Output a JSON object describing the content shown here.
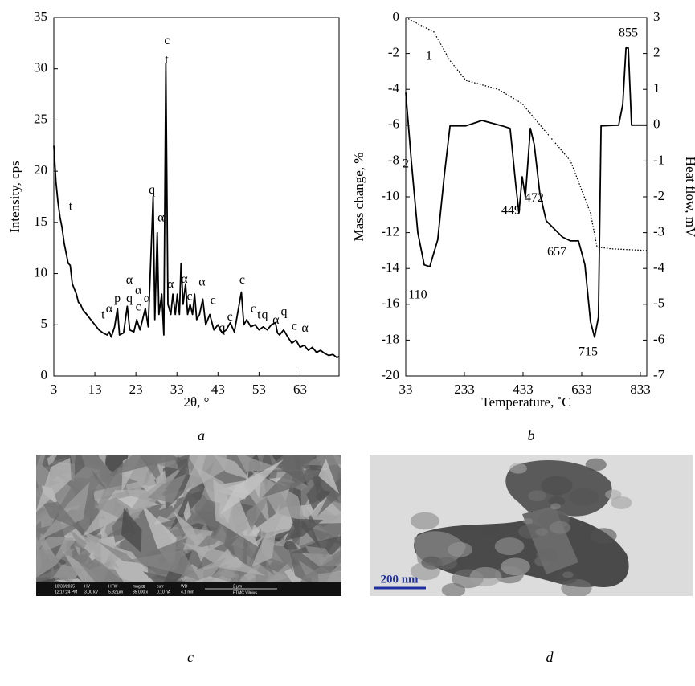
{
  "chart_data": [
    {
      "type": "line",
      "caption": "a",
      "x_label": "2θ, °",
      "y_label": "Intensity, cps",
      "xlim": [
        3,
        72.5
      ],
      "xticks": [
        3,
        13,
        23,
        33,
        43,
        53,
        63
      ],
      "ylim": [
        0,
        35
      ],
      "yticks": [
        0,
        5,
        10,
        15,
        20,
        25,
        30,
        35
      ],
      "series": [
        {
          "color": "#000000",
          "style": "solid",
          "x": [
            3,
            3.5,
            4,
            4.5,
            5,
            5.5,
            6,
            6.5,
            7,
            7.5,
            8,
            8.5,
            9,
            9.5,
            10,
            11,
            12,
            13,
            14,
            15,
            16,
            16.5,
            17,
            17.8,
            18.5,
            19,
            20,
            20.9,
            21.5,
            22.5,
            23.2,
            24,
            25.3,
            26,
            27.2,
            27.6,
            28.2,
            28.6,
            29.3,
            29.8,
            30.3,
            30.8,
            31.5,
            32,
            32.6,
            33.1,
            33.6,
            34,
            34.5,
            35.1,
            35.6,
            36.2,
            36.8,
            37.3,
            37.8,
            38.5,
            39.3,
            40,
            41,
            42,
            43,
            44,
            45,
            46,
            47,
            48.7,
            49.3,
            50,
            51,
            52,
            53,
            54,
            55,
            56,
            57,
            57.5,
            58,
            59,
            60,
            61,
            62,
            63,
            64,
            65,
            66,
            67,
            68,
            69,
            70,
            71,
            72,
            72.5
          ],
          "values": [
            22.5,
            19,
            17,
            15.5,
            14.5,
            13,
            12,
            11,
            10.8,
            9,
            8.5,
            8,
            7.2,
            7,
            6.5,
            6,
            5.5,
            5,
            4.5,
            4.2,
            4,
            4.3,
            3.8,
            4.8,
            6.6,
            4,
            4.2,
            6.8,
            4.5,
            4.3,
            5.5,
            4.5,
            6.6,
            4.8,
            17.5,
            5.5,
            14,
            6,
            8,
            4,
            30.5,
            7,
            6,
            8,
            6,
            8,
            6,
            11,
            7,
            9,
            6,
            7,
            6,
            8,
            5.5,
            6,
            7.5,
            5,
            6,
            4.5,
            5,
            4.2,
            4.5,
            5.2,
            4.3,
            8.2,
            5,
            5.5,
            4.8,
            5,
            4.5,
            4.8,
            4.5,
            5,
            5.2,
            4.2,
            4,
            4.5,
            3.8,
            3.2,
            3.5,
            2.8,
            3,
            2.5,
            2.8,
            2.3,
            2.5,
            2.2,
            2,
            2.1,
            1.8,
            1.9
          ]
        }
      ],
      "annotations": [
        {
          "text": "c",
          "x": 30.6,
          "y": 32.7
        },
        {
          "text": "t",
          "x": 30.5,
          "y": 30.8
        },
        {
          "text": "q",
          "x": 26.9,
          "y": 18.1
        },
        {
          "text": "α",
          "x": 29.1,
          "y": 15.4
        },
        {
          "text": "t",
          "x": 7.1,
          "y": 16.5
        },
        {
          "text": "t",
          "x": 15,
          "y": 5.9
        },
        {
          "text": "α",
          "x": 16.5,
          "y": 6.5
        },
        {
          "text": "p",
          "x": 18.5,
          "y": 7.5
        },
        {
          "text": "q",
          "x": 21.4,
          "y": 7.5
        },
        {
          "text": "α",
          "x": 21.4,
          "y": 9.3
        },
        {
          "text": "α",
          "x": 23.6,
          "y": 8.3
        },
        {
          "text": "c",
          "x": 23.6,
          "y": 6.7
        },
        {
          "text": "α",
          "x": 25.7,
          "y": 7.5
        },
        {
          "text": "α",
          "x": 31.4,
          "y": 8.9
        },
        {
          "text": "α",
          "x": 34.8,
          "y": 9.4
        },
        {
          "text": "c",
          "x": 36.1,
          "y": 7.7
        },
        {
          "text": "α",
          "x": 39.1,
          "y": 9.1
        },
        {
          "text": "c",
          "x": 41.8,
          "y": 7.3
        },
        {
          "text": "q",
          "x": 44,
          "y": 4.6
        },
        {
          "text": "c",
          "x": 45.9,
          "y": 5.7
        },
        {
          "text": "c",
          "x": 48.9,
          "y": 9.3
        },
        {
          "text": "c",
          "x": 51.6,
          "y": 6.5
        },
        {
          "text": "t",
          "x": 53,
          "y": 5.9
        },
        {
          "text": "q",
          "x": 54.4,
          "y": 5.9
        },
        {
          "text": "α",
          "x": 57.1,
          "y": 5.4
        },
        {
          "text": "q",
          "x": 59.1,
          "y": 6.2
        },
        {
          "text": "c",
          "x": 61.6,
          "y": 4.8
        },
        {
          "text": "α",
          "x": 64.2,
          "y": 4.6
        }
      ]
    },
    {
      "type": "line",
      "caption": "b",
      "x_label": "Temperature, ˚C",
      "y_label": "Mass change, %",
      "y2_label": "Heat flow, mV",
      "xlim": [
        33,
        855
      ],
      "xticks": [
        33,
        233,
        433,
        633,
        833
      ],
      "ylim": [
        -20,
        0
      ],
      "yticks": [
        0,
        -2,
        -4,
        -6,
        -8,
        -10,
        -12,
        -14,
        -16,
        -18,
        -20
      ],
      "y2lim": [
        -7,
        3
      ],
      "y2ticks": [
        3,
        2,
        1,
        0,
        -1,
        -2,
        -3,
        -4,
        -5,
        -6,
        -7
      ],
      "series": [
        {
          "color": "#000000",
          "style": "dotted",
          "x": [
            33,
            129,
            184,
            238,
            348,
            430,
            512,
            595,
            663,
            685,
            732,
            855
          ],
          "values": [
            0,
            -0.8,
            -2.4,
            -3.5,
            -4,
            -4.8,
            -6.4,
            -8,
            -10.9,
            -12.8,
            -12.9,
            -13
          ]
        },
        {
          "color": "#000000",
          "style": "solid",
          "axis": "y2",
          "x": [
            33,
            52,
            74,
            96,
            115,
            142,
            164,
            184,
            238,
            293,
            362,
            389,
            408,
            419,
            430,
            441,
            458,
            471,
            490,
            512,
            540,
            567,
            595,
            622,
            644,
            663,
            677,
            690,
            699,
            759,
            773,
            784,
            792,
            803,
            855
          ],
          "values": [
            0.91,
            -0.99,
            -3,
            -3.9,
            -3.95,
            -3.2,
            -1.44,
            -0.02,
            -0.02,
            0.13,
            -0.02,
            -0.09,
            -1.66,
            -2.45,
            -1.44,
            -2,
            -0.09,
            -0.54,
            -1.89,
            -2.67,
            -2.9,
            -3.12,
            -3.23,
            -3.23,
            -3.9,
            -5.48,
            -5.92,
            -5.36,
            -0.02,
            0,
            0.58,
            2.15,
            2.15,
            0,
            0
          ]
        }
      ],
      "annotations": [
        {
          "text": "110",
          "x": 74,
          "y": -15.5
        },
        {
          "text": "449",
          "x": 392,
          "y": -10.8
        },
        {
          "text": "472",
          "x": 471,
          "y": -10.1
        },
        {
          "text": "657",
          "x": 548,
          "y": -13.1
        },
        {
          "text": "715",
          "x": 655,
          "y": -18.7
        },
        {
          "text": "855",
          "x": 792,
          "y": -0.9
        },
        {
          "text": "1",
          "x": 112,
          "y": -2.2
        },
        {
          "text": "2",
          "x": 33,
          "y": -8.2
        }
      ]
    }
  ],
  "images": [
    {
      "caption": "c",
      "timestamp": [
        "10/30/2025",
        "12:17:24 PM"
      ],
      "info_bar": [
        {
          "label": "HV",
          "value": "3.00 kV"
        },
        {
          "label": "HFW",
          "value": "5.92 μm"
        },
        {
          "label": "mag ⊞",
          "value": "35 000 x"
        },
        {
          "label": "curr",
          "value": "0.10 nA"
        },
        {
          "label": "WD",
          "value": "4.1 mm"
        }
      ],
      "scale": "2 μm",
      "site": "FTMC Vilnius"
    },
    {
      "caption": "d",
      "scale": "200 nm"
    }
  ]
}
